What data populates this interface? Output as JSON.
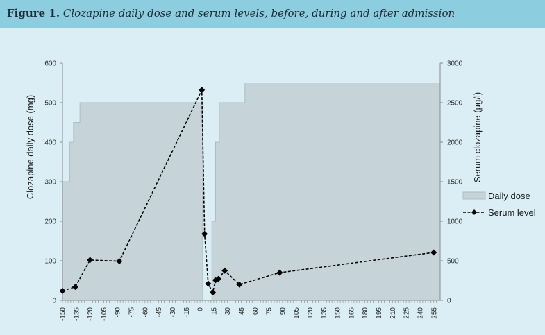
{
  "figure": {
    "label": "Figure 1.",
    "title": "Clozapine daily dose and serum levels, before, during and after admission"
  },
  "colors": {
    "header_bg": "#8ccde0",
    "page_bg": "#dbeef5",
    "dose_fill": "#c6d4da",
    "dose_stroke": "#aebdc3",
    "serum_line": "#000000"
  },
  "chart_data": {
    "type": "area",
    "x_ticks": [
      -150,
      -135,
      -120,
      -105,
      -90,
      -75,
      -60,
      -45,
      -30,
      -15,
      0,
      15,
      30,
      45,
      60,
      75,
      90,
      105,
      120,
      135,
      150,
      165,
      180,
      195,
      210,
      225,
      240,
      255
    ],
    "xlim": [
      -150,
      262
    ],
    "ylabel": "Clozapine daily dose (mg)",
    "ylim": [
      0,
      600
    ],
    "y_ticks": [
      0,
      100,
      200,
      300,
      400,
      500,
      600
    ],
    "y2label": "Serum clozapine (µg/l)",
    "y2lim": [
      0,
      3000
    ],
    "y2_ticks": [
      0,
      500,
      1000,
      1500,
      2000,
      2500,
      3000
    ],
    "legend_position": "right",
    "series": [
      {
        "name": "Daily dose",
        "kind": "area",
        "axis": "left",
        "x": [
          -150,
          -142,
          -142,
          -138,
          -138,
          -131,
          -131,
          3,
          3,
          13,
          13,
          17,
          17,
          21,
          21,
          49,
          49,
          262
        ],
        "y": [
          300,
          300,
          400,
          400,
          450,
          450,
          500,
          500,
          0,
          0,
          200,
          200,
          400,
          400,
          500,
          500,
          550,
          550
        ]
      },
      {
        "name": "Serum level",
        "kind": "line",
        "axis": "right",
        "style": "dashed-diamond",
        "x": [
          -150,
          -136,
          -120,
          -88,
          2,
          5,
          9,
          14,
          17,
          20,
          27,
          43,
          87,
          255
        ],
        "y": [
          120,
          170,
          510,
          495,
          2660,
          840,
          210,
          100,
          255,
          270,
          375,
          200,
          350,
          605
        ]
      }
    ]
  }
}
